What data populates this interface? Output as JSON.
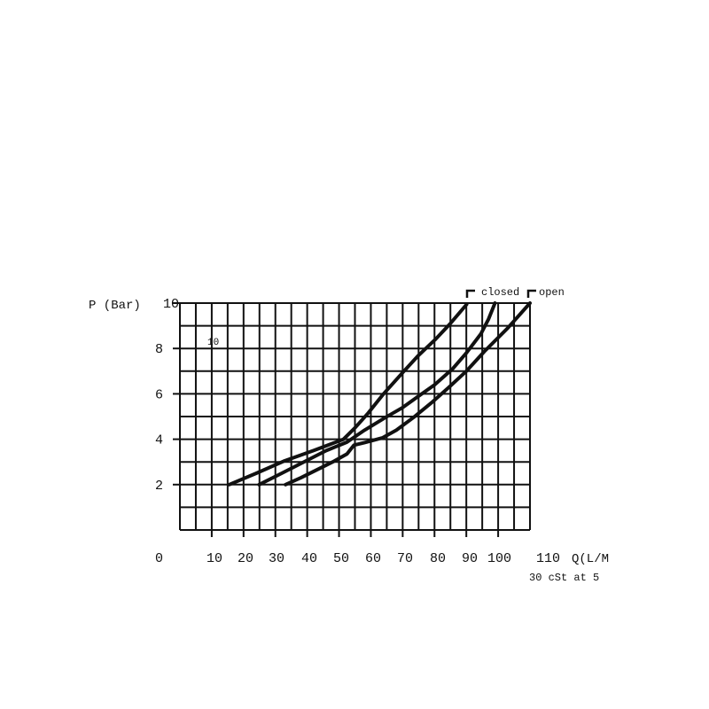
{
  "chart_data": {
    "type": "line",
    "title": "",
    "ylabel": "P (Bar)",
    "xlabel": "Q(L/M",
    "note": "30 cSt at 5",
    "xlim": [
      0,
      110
    ],
    "ylim": [
      0,
      10
    ],
    "grid": true,
    "y_ticks": [
      "10",
      "8",
      "6",
      "4",
      "2"
    ],
    "y_tick_values": [
      10,
      8,
      6,
      4,
      2
    ],
    "x_ticks": [
      "0",
      "10",
      "20",
      "30",
      "40",
      "50",
      "60",
      "70",
      "80",
      "90",
      "100",
      "110"
    ],
    "inner_label": "10",
    "legend": [
      {
        "label": "closed",
        "placement": "top-right"
      },
      {
        "label": "open",
        "placement": "top-right"
      }
    ],
    "series": [
      {
        "points": [
          [
            15.5,
            2.0
          ],
          [
            24,
            2.5
          ],
          [
            32.6,
            3.03
          ],
          [
            42,
            3.5
          ],
          [
            51.4,
            4.0
          ],
          [
            55,
            4.5
          ],
          [
            59.2,
            5.16
          ],
          [
            64,
            6.0
          ],
          [
            70.2,
            6.97
          ],
          [
            75,
            7.7
          ],
          [
            80.2,
            8.39
          ],
          [
            85,
            9.1
          ],
          [
            90.1,
            9.94
          ]
        ]
      },
      {
        "points": [
          [
            24.9,
            2.0
          ],
          [
            32,
            2.5
          ],
          [
            40.4,
            3.1
          ],
          [
            46,
            3.5
          ],
          [
            52.5,
            3.87
          ],
          [
            58,
            4.4
          ],
          [
            64.7,
            4.97
          ],
          [
            70,
            5.4
          ],
          [
            74.7,
            5.87
          ],
          [
            80,
            6.4
          ],
          [
            85.7,
            7.1
          ],
          [
            90,
            7.8
          ],
          [
            94.6,
            8.65
          ],
          [
            97,
            9.3
          ],
          [
            99,
            10.0
          ]
        ]
      },
      {
        "points": [
          [
            33.2,
            2.0
          ],
          [
            38,
            2.3
          ],
          [
            43.7,
            2.7
          ],
          [
            48,
            3.0
          ],
          [
            52.5,
            3.35
          ],
          [
            54.7,
            3.74
          ],
          [
            58,
            3.85
          ],
          [
            63.6,
            4.06
          ],
          [
            68,
            4.4
          ],
          [
            73.5,
            4.97
          ],
          [
            79,
            5.6
          ],
          [
            84.6,
            6.3
          ],
          [
            90,
            7.0
          ],
          [
            95.7,
            7.87
          ],
          [
            103,
            8.9
          ],
          [
            110,
            10.0
          ]
        ]
      }
    ],
    "colors": {
      "line": "#111111",
      "grid": "#111111",
      "background": "#ffffff"
    }
  }
}
